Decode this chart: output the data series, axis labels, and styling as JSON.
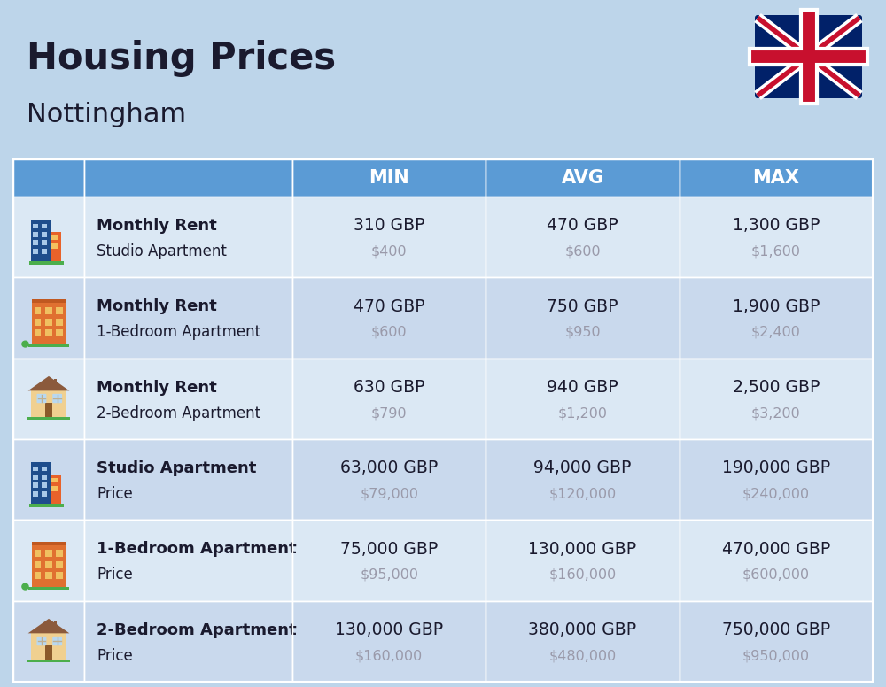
{
  "title": "Housing Prices",
  "subtitle": "Nottingham",
  "bg_color": "#bdd5ea",
  "header_bg": "#5b9bd5",
  "header_text_color": "#ffffff",
  "row_bg_light": "#dbe8f4",
  "row_bg_dark": "#c9d9ed",
  "columns": [
    "MIN",
    "AVG",
    "MAX"
  ],
  "rows": [
    {
      "label_bold": "Monthly Rent",
      "label_light": "Studio Apartment",
      "min_gbp": "310 GBP",
      "min_usd": "$400",
      "avg_gbp": "470 GBP",
      "avg_usd": "$600",
      "max_gbp": "1,300 GBP",
      "max_usd": "$1,600",
      "icon_type": "studio_blue"
    },
    {
      "label_bold": "Monthly Rent",
      "label_light": "1-Bedroom Apartment",
      "min_gbp": "470 GBP",
      "min_usd": "$600",
      "avg_gbp": "750 GBP",
      "avg_usd": "$950",
      "max_gbp": "1,900 GBP",
      "max_usd": "$2,400",
      "icon_type": "apt_orange"
    },
    {
      "label_bold": "Monthly Rent",
      "label_light": "2-Bedroom Apartment",
      "min_gbp": "630 GBP",
      "min_usd": "$790",
      "avg_gbp": "940 GBP",
      "avg_usd": "$1,200",
      "max_gbp": "2,500 GBP",
      "max_usd": "$3,200",
      "icon_type": "house_beige"
    },
    {
      "label_bold": "Studio Apartment",
      "label_light": "Price",
      "min_gbp": "63,000 GBP",
      "min_usd": "$79,000",
      "avg_gbp": "94,000 GBP",
      "avg_usd": "$120,000",
      "max_gbp": "190,000 GBP",
      "max_usd": "$240,000",
      "icon_type": "studio_blue"
    },
    {
      "label_bold": "1-Bedroom Apartment",
      "label_light": "Price",
      "min_gbp": "75,000 GBP",
      "min_usd": "$95,000",
      "avg_gbp": "130,000 GBP",
      "avg_usd": "$160,000",
      "max_gbp": "470,000 GBP",
      "max_usd": "$600,000",
      "icon_type": "apt_orange"
    },
    {
      "label_bold": "2-Bedroom Apartment",
      "label_light": "Price",
      "min_gbp": "130,000 GBP",
      "min_usd": "$160,000",
      "avg_gbp": "380,000 GBP",
      "avg_usd": "$480,000",
      "max_gbp": "750,000 GBP",
      "max_usd": "$950,000",
      "icon_type": "house_beige"
    }
  ],
  "text_dark": "#1a1a2e",
  "text_usd": "#9a9aaa"
}
